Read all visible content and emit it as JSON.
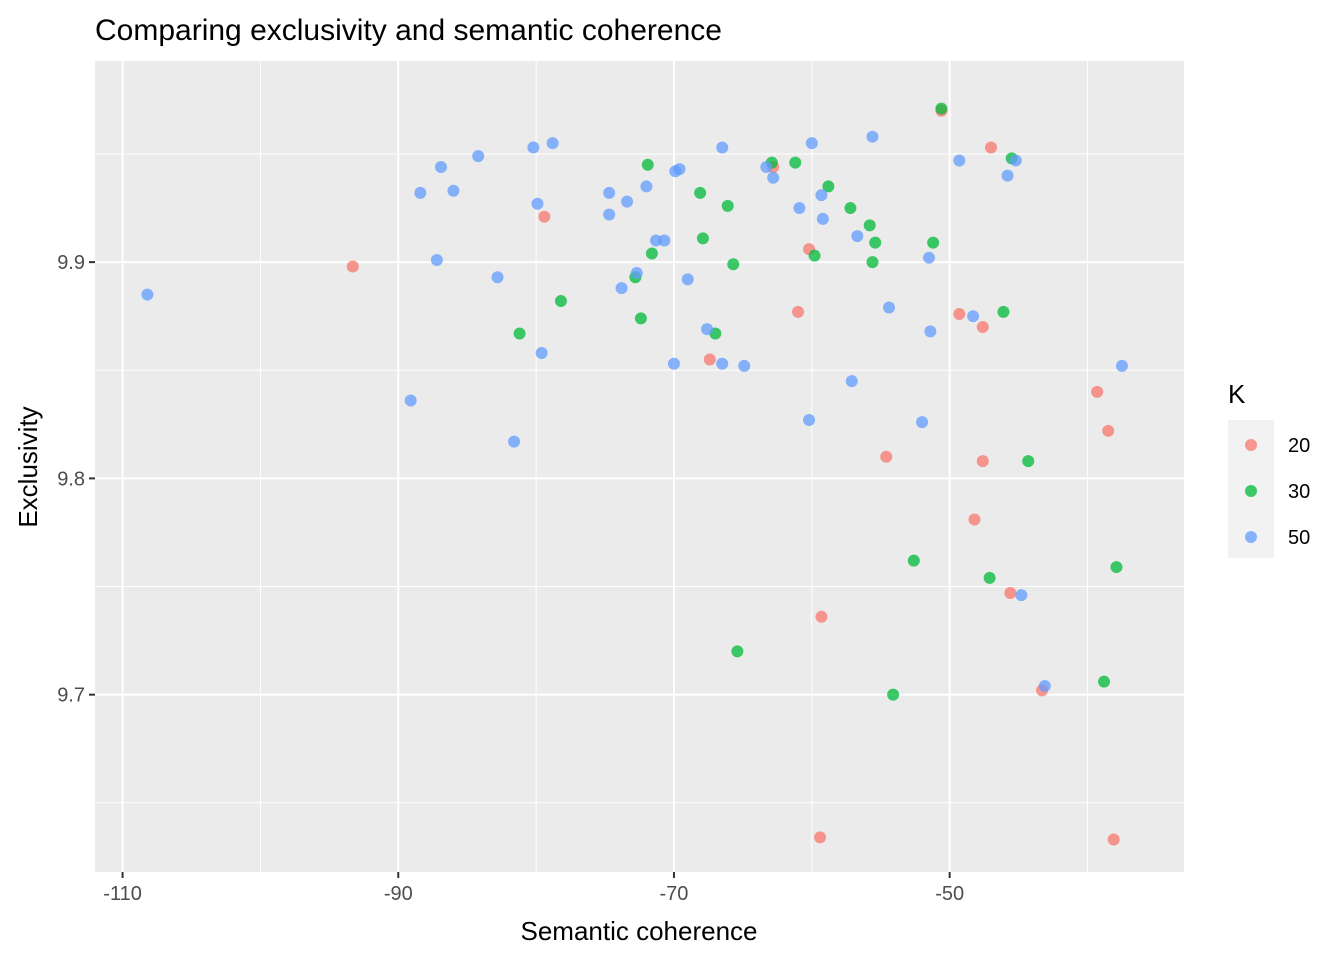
{
  "chart_data": {
    "type": "scatter",
    "title": "Comparing exclusivity and semantic coherence",
    "xlabel": "Semantic coherence",
    "ylabel": "Exclusivity",
    "xlim": [
      -112,
      -33
    ],
    "ylim": [
      9.618,
      9.993
    ],
    "x_ticks": [
      -110,
      -90,
      -70,
      -50
    ],
    "x_tick_labels": [
      "-110",
      "-90",
      "-70",
      "-50"
    ],
    "y_ticks": [
      9.7,
      9.8,
      9.9
    ],
    "y_tick_labels": [
      "9.7",
      "9.8",
      "9.9"
    ],
    "grid": true,
    "legend": {
      "title": "K",
      "position": "right",
      "entries": [
        {
          "label": "20",
          "color": "#F8766D"
        },
        {
          "label": "30",
          "color": "#00BA38"
        },
        {
          "label": "50",
          "color": "#619CFF"
        }
      ]
    },
    "series": [
      {
        "name": "20",
        "color": "#F8766D",
        "points": [
          [
            -93.3,
            9.898
          ],
          [
            -79.4,
            9.921
          ],
          [
            -67.4,
            9.855
          ],
          [
            -62.8,
            9.944
          ],
          [
            -61.0,
            9.877
          ],
          [
            -60.2,
            9.906
          ],
          [
            -59.3,
            9.736
          ],
          [
            -59.4,
            9.634
          ],
          [
            -54.6,
            9.81
          ],
          [
            -50.6,
            9.97
          ],
          [
            -49.3,
            9.876
          ],
          [
            -48.2,
            9.781
          ],
          [
            -47.6,
            9.808
          ],
          [
            -47.6,
            9.87
          ],
          [
            -47.0,
            9.953
          ],
          [
            -45.6,
            9.747
          ],
          [
            -43.3,
            9.702
          ],
          [
            -39.3,
            9.84
          ],
          [
            -38.5,
            9.822
          ],
          [
            -38.1,
            9.633
          ]
        ]
      },
      {
        "name": "30",
        "color": "#00BA38",
        "points": [
          [
            -81.2,
            9.867
          ],
          [
            -78.2,
            9.882
          ],
          [
            -72.4,
            9.874
          ],
          [
            -71.9,
            9.945
          ],
          [
            -71.6,
            9.904
          ],
          [
            -72.8,
            9.893
          ],
          [
            -68.1,
            9.932
          ],
          [
            -67.9,
            9.911
          ],
          [
            -67.0,
            9.867
          ],
          [
            -66.1,
            9.926
          ],
          [
            -65.7,
            9.899
          ],
          [
            -65.4,
            9.72
          ],
          [
            -62.9,
            9.946
          ],
          [
            -61.2,
            9.946
          ],
          [
            -59.8,
            9.903
          ],
          [
            -58.8,
            9.935
          ],
          [
            -57.2,
            9.925
          ],
          [
            -55.8,
            9.917
          ],
          [
            -55.4,
            9.909
          ],
          [
            -55.6,
            9.9
          ],
          [
            -54.1,
            9.7
          ],
          [
            -52.6,
            9.762
          ],
          [
            -51.2,
            9.909
          ],
          [
            -50.6,
            9.971
          ],
          [
            -47.1,
            9.754
          ],
          [
            -46.1,
            9.877
          ],
          [
            -45.5,
            9.948
          ],
          [
            -44.3,
            9.808
          ],
          [
            -38.8,
            9.706
          ],
          [
            -37.9,
            9.759
          ]
        ]
      },
      {
        "name": "50",
        "color": "#619CFF",
        "points": [
          [
            -108.2,
            9.885
          ],
          [
            -89.1,
            9.836
          ],
          [
            -88.4,
            9.932
          ],
          [
            -87.2,
            9.901
          ],
          [
            -86.9,
            9.944
          ],
          [
            -86.0,
            9.933
          ],
          [
            -84.2,
            9.949
          ],
          [
            -82.8,
            9.893
          ],
          [
            -81.6,
            9.817
          ],
          [
            -80.2,
            9.953
          ],
          [
            -79.9,
            9.927
          ],
          [
            -79.6,
            9.858
          ],
          [
            -78.8,
            9.955
          ],
          [
            -74.7,
            9.922
          ],
          [
            -74.7,
            9.932
          ],
          [
            -73.8,
            9.888
          ],
          [
            -73.4,
            9.928
          ],
          [
            -72.7,
            9.895
          ],
          [
            -72.0,
            9.935
          ],
          [
            -71.3,
            9.91
          ],
          [
            -70.7,
            9.91
          ],
          [
            -70.0,
            9.853
          ],
          [
            -69.9,
            9.942
          ],
          [
            -69.6,
            9.943
          ],
          [
            -69.0,
            9.892
          ],
          [
            -67.6,
            9.869
          ],
          [
            -66.5,
            9.953
          ],
          [
            -66.5,
            9.853
          ],
          [
            -64.9,
            9.852
          ],
          [
            -63.3,
            9.944
          ],
          [
            -62.8,
            9.939
          ],
          [
            -60.9,
            9.925
          ],
          [
            -60.2,
            9.827
          ],
          [
            -60.0,
            9.955
          ],
          [
            -59.3,
            9.931
          ],
          [
            -59.2,
            9.92
          ],
          [
            -57.1,
            9.845
          ],
          [
            -56.7,
            9.912
          ],
          [
            -55.6,
            9.958
          ],
          [
            -54.4,
            9.879
          ],
          [
            -52.0,
            9.826
          ],
          [
            -51.5,
            9.902
          ],
          [
            -51.4,
            9.868
          ],
          [
            -49.3,
            9.947
          ],
          [
            -48.3,
            9.875
          ],
          [
            -45.8,
            9.94
          ],
          [
            -45.2,
            9.947
          ],
          [
            -44.8,
            9.746
          ],
          [
            -43.1,
            9.704
          ],
          [
            -37.5,
            9.852
          ]
        ]
      }
    ]
  }
}
